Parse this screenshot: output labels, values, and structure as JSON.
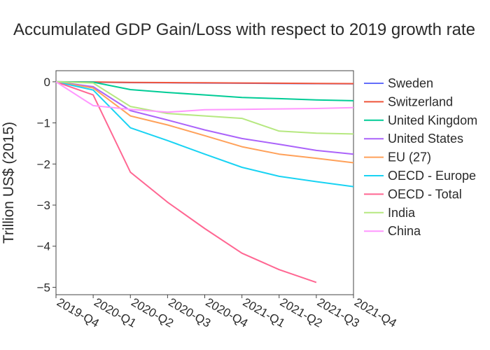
{
  "chart_data": {
    "type": "line",
    "title": "Accumulated GDP Gain/Loss with respect to 2019 growth rate",
    "xlabel": "",
    "ylabel": "Trillion US$ (2015)",
    "x": [
      "2019-Q4",
      "2020-Q1",
      "2020-Q2",
      "2020-Q3",
      "2020-Q4",
      "2021-Q1",
      "2021-Q2",
      "2021-Q3",
      "2021-Q4"
    ],
    "yticks": [
      0,
      -1,
      -2,
      -3,
      -4,
      -5
    ],
    "ytick_labels": [
      "0",
      "−1",
      "−2",
      "−3",
      "−4",
      "−5"
    ],
    "ylim": [
      -5.18,
      0.27
    ],
    "grid": false,
    "legend": "right",
    "series": [
      {
        "name": "Sweden",
        "color": "#636efa",
        "values": [
          0,
          -0.01,
          -0.02,
          -0.025,
          -0.03,
          -0.035,
          -0.04,
          -0.045,
          -0.05
        ]
      },
      {
        "name": "Switzerland",
        "color": "#ef553b",
        "values": [
          0,
          -0.005,
          -0.015,
          -0.02,
          -0.025,
          -0.03,
          -0.035,
          -0.04,
          -0.045
        ]
      },
      {
        "name": "United Kingdom",
        "color": "#00cc96",
        "values": [
          0,
          -0.01,
          -0.19,
          -0.26,
          -0.32,
          -0.38,
          -0.41,
          -0.44,
          -0.46
        ]
      },
      {
        "name": "United States",
        "color": "#ab63fa",
        "values": [
          0,
          -0.12,
          -0.7,
          -0.93,
          -1.17,
          -1.38,
          -1.52,
          -1.67,
          -1.76
        ]
      },
      {
        "name": "EU (27)",
        "color": "#ffa15a",
        "values": [
          0,
          -0.15,
          -0.83,
          -1.05,
          -1.31,
          -1.58,
          -1.76,
          -1.86,
          -1.97
        ]
      },
      {
        "name": "OECD - Europe",
        "color": "#19d3f3",
        "values": [
          0,
          -0.2,
          -1.12,
          -1.43,
          -1.76,
          -2.08,
          -2.3,
          -2.43,
          -2.55
        ]
      },
      {
        "name": "OECD - Total",
        "color": "#ff6692",
        "values": [
          0,
          -0.32,
          -2.2,
          -2.93,
          -3.57,
          -4.17,
          -4.57,
          -4.88,
          null
        ]
      },
      {
        "name": "India",
        "color": "#b6e880",
        "values": [
          0,
          -0.03,
          -0.6,
          -0.77,
          -0.83,
          -0.89,
          -1.2,
          -1.25,
          -1.27
        ]
      },
      {
        "name": "China",
        "color": "#ff97ff",
        "values": [
          0,
          -0.58,
          -0.67,
          -0.74,
          -0.68,
          -0.67,
          -0.66,
          -0.65,
          -0.63
        ]
      }
    ]
  }
}
